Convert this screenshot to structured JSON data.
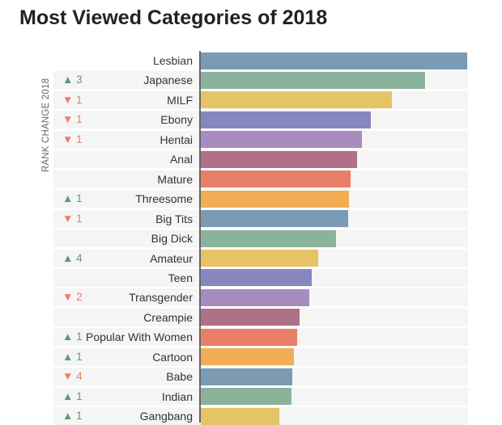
{
  "chart_data": {
    "type": "bar",
    "orientation": "horizontal",
    "title": "Most Viewed Categories of 2018",
    "ylabel": "RANK CHANGE 2018",
    "xlabel": "",
    "xlim": [
      0,
      100
    ],
    "categories": [
      "Lesbian",
      "Japanese",
      "MILF",
      "Ebony",
      "Hentai",
      "Anal",
      "Mature",
      "Threesome",
      "Big Tits",
      "Big Dick",
      "Amateur",
      "Teen",
      "Transgender",
      "Creampie",
      "Popular With Women",
      "Cartoon",
      "Babe",
      "Indian",
      "Gangbang"
    ],
    "values": [
      100,
      84.2,
      71.7,
      63.8,
      60.5,
      58.7,
      56.2,
      55.6,
      55.3,
      50.8,
      44.1,
      41.6,
      40.7,
      37.1,
      36.2,
      35.0,
      34.3,
      34.0,
      29.5
    ],
    "rank_change": [
      null,
      "▲ 3",
      "▼ 1",
      "▼ 1",
      "▼ 1",
      null,
      null,
      "▲ 1",
      "▼ 1",
      null,
      "▲ 4",
      null,
      "▼ 2",
      null,
      "▲ 1",
      "▲ 1",
      "▼ 4",
      "▲ 1",
      "▲ 1"
    ],
    "colors": [
      "#7b9ab3",
      "#8bb39b",
      "#e6c466",
      "#8886be",
      "#a68cbf",
      "#b07088",
      "#e97f68",
      "#f2ad55"
    ],
    "up_color": "#5e9a76",
    "down_color": "#ef7d5e"
  }
}
